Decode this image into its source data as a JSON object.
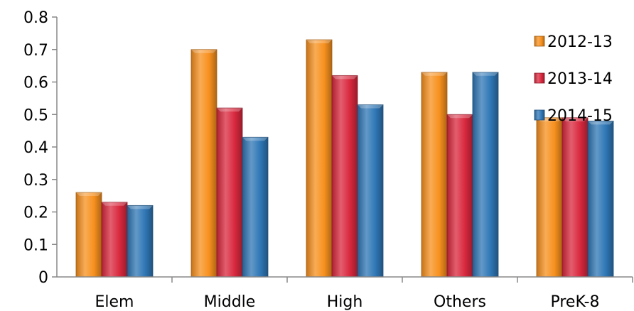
{
  "chart_data": {
    "type": "bar",
    "title": "",
    "xlabel": "",
    "ylabel": "",
    "categories": [
      "Elem",
      "Middle",
      "High",
      "Others",
      "PreK-8"
    ],
    "series": [
      {
        "name": "2012-13",
        "values": [
          0.26,
          0.7,
          0.73,
          0.63,
          0.49
        ],
        "color": "#f7901e"
      },
      {
        "name": "2013-14",
        "values": [
          0.23,
          0.52,
          0.62,
          0.5,
          0.49
        ],
        "color": "#d9283e"
      },
      {
        "name": "2014-15",
        "values": [
          0.22,
          0.43,
          0.53,
          0.63,
          0.48
        ],
        "color": "#2f77b6"
      }
    ],
    "ylim": [
      0,
      0.8
    ],
    "yticks": [
      "0",
      "0.1",
      "0.2",
      "0.3",
      "0.4",
      "0.5",
      "0.6",
      "0.7",
      "0.8"
    ],
    "grid": false,
    "legend": "right"
  }
}
